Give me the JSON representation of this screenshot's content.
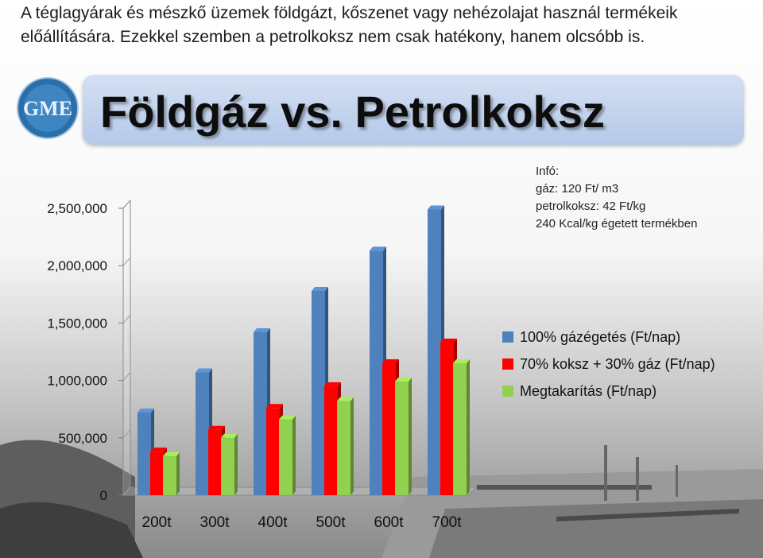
{
  "header": {
    "lines": [
      "A téglagyárak és mészkő üzemek földgázt, kőszenet vagy nehézolajat használ termékeik",
      "előállítására. Ezekkel szemben a petrolkoksz nem csak hatékony, hanem olcsóbb is."
    ],
    "slide_title": "Földgáz vs. Petrolkoksz",
    "logo_text": "GME"
  },
  "info": {
    "lines": [
      "Infó:",
      "gáz: 120 Ft/ m3",
      "petrolkoksz: 42 Ft/kg",
      "240 Kcal/kg égetett termékben"
    ]
  },
  "chart_data": {
    "type": "bar",
    "categories": [
      "200t",
      "300t",
      "400t",
      "500t",
      "600t",
      "700t"
    ],
    "series": [
      {
        "name": "100% gázégetés (Ft/nap)",
        "color": "#4f81bd",
        "values": [
          720000,
          1070000,
          1420000,
          1780000,
          2130000,
          2490000
        ]
      },
      {
        "name": "70% koksz + 30% gáz (Ft/nap)",
        "color": "#ff0000",
        "values": [
          380000,
          570000,
          760000,
          950000,
          1150000,
          1330000
        ]
      },
      {
        "name": "Megtakarítás (Ft/nap)",
        "color": "#92d050",
        "values": [
          340000,
          500000,
          660000,
          820000,
          990000,
          1150000
        ]
      }
    ],
    "yticks": [
      "0",
      "500,000",
      "1,000,000",
      "1,500,000",
      "2,000,000",
      "2,500,000"
    ],
    "ylim": [
      0,
      2500000
    ],
    "legend": "right",
    "grid": false
  }
}
